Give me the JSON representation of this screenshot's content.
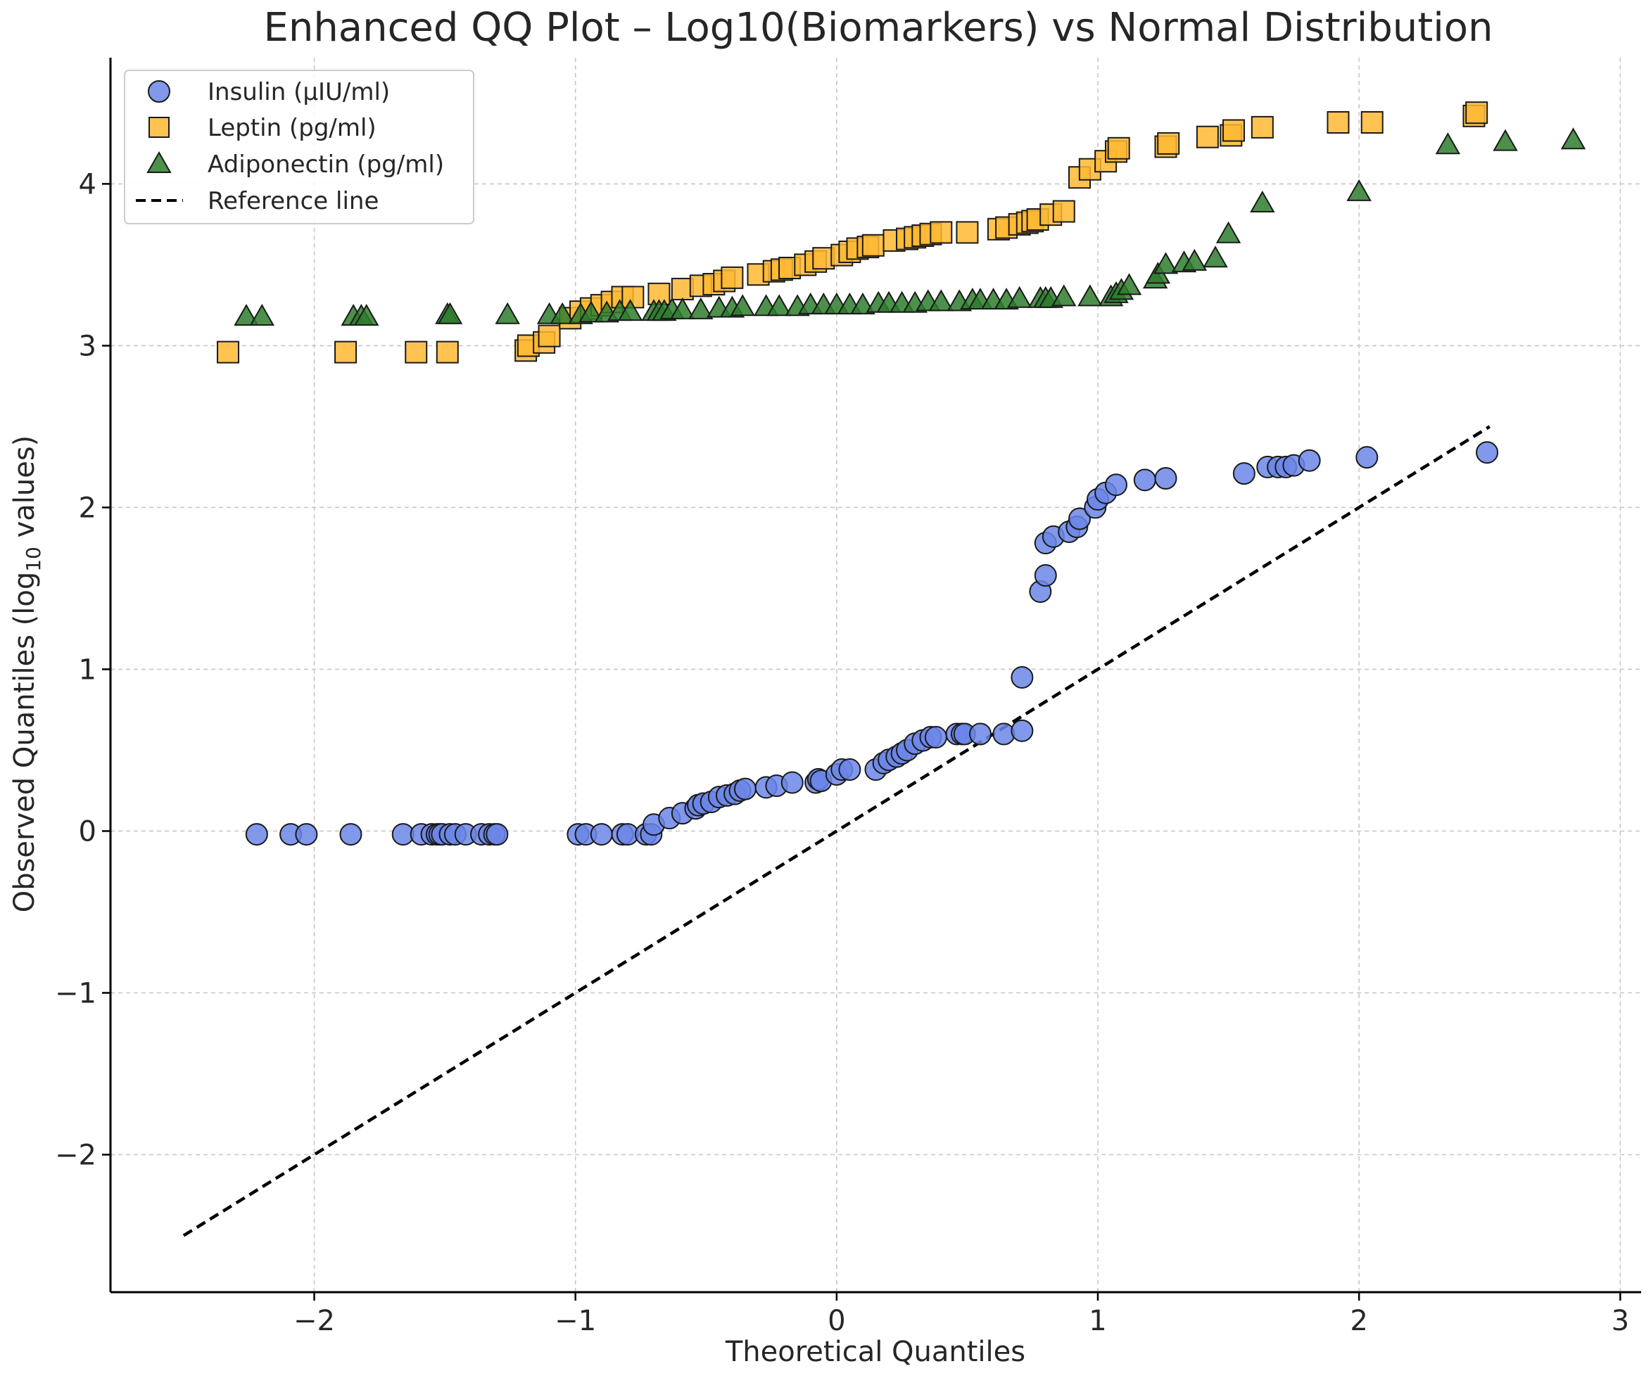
{
  "chart_data": {
    "type": "scatter",
    "title": "Enhanced QQ Plot – Log10(Biomarkers) vs Normal Distribution",
    "xlabel": "Theoretical Quantiles",
    "ylabel_main": "Observed Quantiles (log",
    "ylabel_sub": "10",
    "ylabel_end": " values)",
    "xlim": [
      -2.78,
      3.08
    ],
    "ylim": [
      -2.85,
      4.78
    ],
    "xticks": [
      -2,
      -1,
      0,
      1,
      2,
      3
    ],
    "yticks": [
      -2,
      -1,
      0,
      1,
      2,
      3,
      4
    ],
    "xtick_labels": [
      "−2",
      "−1",
      "0",
      "1",
      "2",
      "3"
    ],
    "ytick_labels": [
      "−2",
      "−1",
      "0",
      "1",
      "2",
      "3",
      "4"
    ],
    "grid": true,
    "legend_position": "top-left",
    "series": [
      {
        "name": "Insulin (µIU/ml)",
        "marker": "circle",
        "color": "#6b86e8",
        "x": [
          -2.22,
          -2.09,
          -2.03,
          -1.86,
          -1.66,
          -1.59,
          -1.55,
          -1.53,
          -1.52,
          -1.51,
          -1.48,
          -1.46,
          -1.42,
          -1.36,
          -1.33,
          -1.31,
          -1.3,
          -0.99,
          -0.96,
          -0.9,
          -0.82,
          -0.8,
          -0.73,
          -0.71,
          -0.7,
          -0.64,
          -0.59,
          -0.54,
          -0.53,
          -0.51,
          -0.48,
          -0.45,
          -0.42,
          -0.39,
          -0.37,
          -0.35,
          -0.27,
          -0.23,
          -0.17,
          -0.08,
          -0.07,
          -0.06,
          0.0,
          0.02,
          0.05,
          0.15,
          0.18,
          0.2,
          0.23,
          0.25,
          0.27,
          0.3,
          0.33,
          0.36,
          0.38,
          0.46,
          0.48,
          0.49,
          0.55,
          0.64,
          0.71,
          0.71,
          0.78,
          0.8,
          0.8,
          0.83,
          0.89,
          0.92,
          0.93,
          0.99,
          1.0,
          1.03,
          1.07,
          1.18,
          1.26,
          1.56,
          1.65,
          1.69,
          1.72,
          1.75,
          1.81,
          2.03,
          2.49
        ],
        "y": [
          -0.02,
          -0.02,
          -0.02,
          -0.02,
          -0.02,
          -0.02,
          -0.02,
          -0.02,
          -0.02,
          -0.02,
          -0.02,
          -0.02,
          -0.02,
          -0.02,
          -0.02,
          -0.02,
          -0.02,
          -0.02,
          -0.02,
          -0.02,
          -0.02,
          -0.02,
          -0.02,
          -0.02,
          0.04,
          0.08,
          0.11,
          0.14,
          0.16,
          0.17,
          0.18,
          0.21,
          0.22,
          0.23,
          0.25,
          0.26,
          0.27,
          0.28,
          0.3,
          0.3,
          0.32,
          0.31,
          0.35,
          0.38,
          0.38,
          0.38,
          0.42,
          0.44,
          0.46,
          0.48,
          0.5,
          0.54,
          0.56,
          0.58,
          0.58,
          0.6,
          0.6,
          0.6,
          0.6,
          0.6,
          0.62,
          0.95,
          1.48,
          1.58,
          1.78,
          1.82,
          1.85,
          1.88,
          1.93,
          2.0,
          2.05,
          2.09,
          2.14,
          2.17,
          2.18,
          2.21,
          2.25,
          2.25,
          2.25,
          2.26,
          2.29,
          2.31,
          2.34
        ]
      },
      {
        "name": "Leptin (pg/ml)",
        "marker": "square",
        "color": "#ffb833",
        "x": [
          -2.33,
          -1.88,
          -1.61,
          -1.49,
          -1.19,
          -1.18,
          -1.12,
          -1.1,
          -1.02,
          -0.98,
          -0.94,
          -0.9,
          -0.86,
          -0.82,
          -0.78,
          -0.68,
          -0.59,
          -0.52,
          -0.47,
          -0.43,
          -0.4,
          -0.3,
          -0.24,
          -0.21,
          -0.18,
          -0.12,
          -0.08,
          -0.05,
          0.02,
          0.05,
          0.08,
          0.12,
          0.14,
          0.22,
          0.27,
          0.3,
          0.33,
          0.36,
          0.4,
          0.5,
          0.62,
          0.65,
          0.7,
          0.73,
          0.75,
          0.77,
          0.82,
          0.87,
          0.93,
          0.97,
          1.03,
          1.07,
          1.08,
          1.26,
          1.27,
          1.42,
          1.51,
          1.52,
          1.63,
          1.92,
          2.05,
          2.44,
          2.45
        ],
        "y": [
          2.96,
          2.96,
          2.96,
          2.96,
          2.97,
          3.0,
          3.02,
          3.06,
          3.17,
          3.21,
          3.23,
          3.25,
          3.27,
          3.3,
          3.3,
          3.32,
          3.35,
          3.37,
          3.38,
          3.4,
          3.42,
          3.44,
          3.46,
          3.47,
          3.48,
          3.5,
          3.52,
          3.54,
          3.56,
          3.58,
          3.6,
          3.61,
          3.62,
          3.65,
          3.66,
          3.67,
          3.68,
          3.69,
          3.7,
          3.7,
          3.72,
          3.73,
          3.75,
          3.76,
          3.77,
          3.78,
          3.81,
          3.83,
          4.04,
          4.09,
          4.14,
          4.2,
          4.22,
          4.23,
          4.25,
          4.29,
          4.3,
          4.33,
          4.35,
          4.38,
          4.38,
          4.42,
          4.44
        ]
      },
      {
        "name": "Adiponectin (pg/ml)",
        "marker": "triangle",
        "color": "#2d7d2d",
        "x": [
          -2.26,
          -2.2,
          -1.85,
          -1.82,
          -1.8,
          -1.49,
          -1.48,
          -1.26,
          -1.1,
          -1.05,
          -0.98,
          -0.94,
          -0.88,
          -0.83,
          -0.79,
          -0.7,
          -0.68,
          -0.66,
          -0.63,
          -0.59,
          -0.52,
          -0.45,
          -0.4,
          -0.36,
          -0.27,
          -0.22,
          -0.15,
          -0.1,
          -0.05,
          0.0,
          0.05,
          0.1,
          0.16,
          0.2,
          0.25,
          0.3,
          0.35,
          0.4,
          0.47,
          0.52,
          0.55,
          0.6,
          0.65,
          0.7,
          0.78,
          0.8,
          0.82,
          0.87,
          0.97,
          1.05,
          1.07,
          1.09,
          1.12,
          1.22,
          1.23,
          1.26,
          1.33,
          1.37,
          1.45,
          1.5,
          1.63,
          2.0,
          2.34,
          2.56,
          2.82
        ],
        "y": [
          3.18,
          3.18,
          3.18,
          3.18,
          3.18,
          3.19,
          3.19,
          3.19,
          3.19,
          3.19,
          3.19,
          3.2,
          3.2,
          3.21,
          3.21,
          3.21,
          3.21,
          3.21,
          3.22,
          3.22,
          3.22,
          3.23,
          3.23,
          3.24,
          3.24,
          3.24,
          3.24,
          3.25,
          3.25,
          3.25,
          3.25,
          3.25,
          3.26,
          3.26,
          3.26,
          3.26,
          3.27,
          3.27,
          3.27,
          3.28,
          3.28,
          3.28,
          3.28,
          3.29,
          3.29,
          3.29,
          3.29,
          3.3,
          3.3,
          3.3,
          3.32,
          3.34,
          3.37,
          3.41,
          3.44,
          3.5,
          3.51,
          3.52,
          3.54,
          3.69,
          3.88,
          3.95,
          4.24,
          4.26,
          4.27
        ]
      }
    ],
    "reference_line": {
      "name": "Reference line",
      "x": [
        -2.5,
        2.5
      ],
      "y": [
        -2.5,
        2.5
      ]
    }
  }
}
